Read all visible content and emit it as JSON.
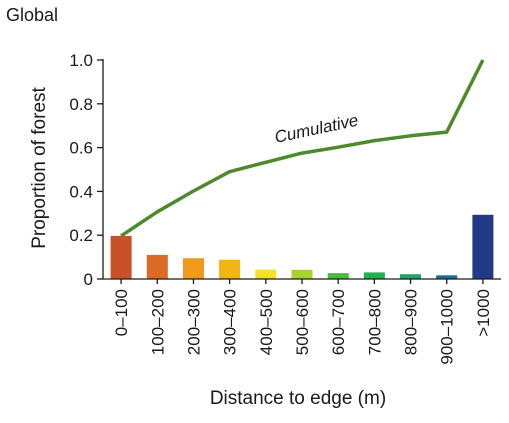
{
  "chart_data": {
    "type": "bar",
    "panel_label": "Global",
    "xlabel": "Distance to edge (m)",
    "ylabel": "Proportion of forest",
    "ylim": [
      0,
      1.0
    ],
    "yticks": [
      0,
      0.2,
      0.4,
      0.6,
      0.8,
      1.0
    ],
    "ytick_labels": [
      "0",
      "0.2",
      "0.4",
      "0.6",
      "0.8",
      "1.0"
    ],
    "grid": false,
    "categories": [
      "0–100",
      "100–200",
      "200–300",
      "300–400",
      "400–500",
      "500–600",
      "600–700",
      "700–800",
      "800–900",
      "900–1000",
      ">1000"
    ],
    "values": [
      0.197,
      0.11,
      0.095,
      0.088,
      0.043,
      0.042,
      0.027,
      0.03,
      0.022,
      0.017,
      0.293
    ],
    "bar_colors": [
      "#c9512a",
      "#da6a26",
      "#ef9a1a",
      "#f1b514",
      "#f3e12a",
      "#a8d232",
      "#4cba3f",
      "#27ae52",
      "#20a26c",
      "#1a6b98",
      "#213a85"
    ],
    "cumulative": {
      "label": "Cumulative",
      "color": "#4d8a2c",
      "values": [
        0.197,
        0.307,
        0.402,
        0.49,
        0.533,
        0.575,
        0.602,
        0.632,
        0.654,
        0.671,
        0.964
      ]
    }
  }
}
